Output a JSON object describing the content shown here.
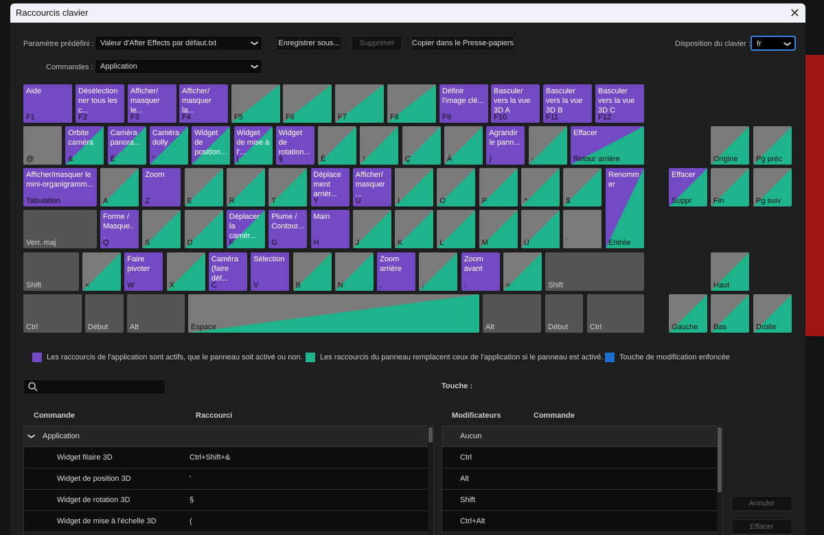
{
  "dialog": {
    "title": "Raccourcis clavier"
  },
  "preset": {
    "label": "Paramètre prédéfini :",
    "value": "Valeur d'After Effects par défaut.txt"
  },
  "commands": {
    "label": "Commandes :",
    "value": "Application"
  },
  "buttons": {
    "save_as": "Enregistrer sous...",
    "delete": "Supprimer",
    "copy": "Copier dans le Presse-papiers",
    "cancel": "Annuler",
    "clear": "Effacer"
  },
  "layout": {
    "label": "Disposition du clavier :",
    "value": "fr"
  },
  "colors": {
    "app": "#7349c4",
    "panel": "#1fb38c",
    "modifier": "#1a6fd0",
    "empty": "#7a7a7a",
    "mod_key": "#555555"
  },
  "keys": [
    {
      "k": "F1",
      "c": "Aide",
      "t": "app"
    },
    {
      "k": "F2",
      "c": "Désélectionner tous les c...",
      "t": "app"
    },
    {
      "k": "F3",
      "c": "Afficher/ masquer le...",
      "t": "app"
    },
    {
      "k": "F4",
      "c": "Afficher/ masquer la...",
      "t": "app"
    },
    {
      "k": "F5",
      "c": "",
      "t": "panel"
    },
    {
      "k": "F6",
      "c": "",
      "t": "panel"
    },
    {
      "k": "F7",
      "c": "",
      "t": "panel"
    },
    {
      "k": "F8",
      "c": "",
      "t": "panel"
    },
    {
      "k": "F9",
      "c": "Définir l'image clé...",
      "t": "app"
    },
    {
      "k": "F10",
      "c": "Basculer vers la vue 3D A",
      "t": "app"
    },
    {
      "k": "F11",
      "c": "Basculer vers la vue 3D B",
      "t": "app"
    },
    {
      "k": "F12",
      "c": "Basculer vers la vue 3D C",
      "t": "app"
    },
    {
      "k": "@",
      "c": "",
      "t": "none"
    },
    {
      "k": "&",
      "c": "Orbite caméra",
      "t": "both"
    },
    {
      "k": "É",
      "c": "Caméra panora...",
      "t": "both"
    },
    {
      "k": "\"",
      "c": "Caméra dolly",
      "t": "both"
    },
    {
      "k": "'",
      "c": "Widget de position...",
      "t": "both"
    },
    {
      "k": "(",
      "c": "Widget de mise à l'...",
      "t": "both"
    },
    {
      "k": "§",
      "c": "Widget de rotation...",
      "t": "app"
    },
    {
      "k": "È",
      "c": "",
      "t": "panel"
    },
    {
      "k": "!",
      "c": "",
      "t": "panel"
    },
    {
      "k": "Ç",
      "c": "",
      "t": "panel"
    },
    {
      "k": "À",
      "c": "",
      "t": "panel"
    },
    {
      "k": ")",
      "c": "Agrandir le pann...",
      "t": "app"
    },
    {
      "k": "-",
      "c": "",
      "t": "panel"
    },
    {
      "k": "Retour arrière",
      "c": "Effacer",
      "t": "both"
    },
    {
      "k": "Origine",
      "c": "",
      "t": "panel"
    },
    {
      "k": "Pg préc",
      "c": "",
      "t": "panel"
    },
    {
      "k": "Tabulation",
      "c": "Afficher/masquer le mini-organigramm...",
      "t": "app"
    },
    {
      "k": "A",
      "c": "",
      "t": "panel"
    },
    {
      "k": "Z",
      "c": "Zoom",
      "t": "app"
    },
    {
      "k": "E",
      "c": "",
      "t": "panel"
    },
    {
      "k": "R",
      "c": "",
      "t": "panel"
    },
    {
      "k": "T",
      "c": "",
      "t": "panel"
    },
    {
      "k": "Y",
      "c": "Déplacement arrièr...",
      "t": "app"
    },
    {
      "k": "U",
      "c": "Afficher/ masquer ...",
      "t": "app"
    },
    {
      "k": "I",
      "c": "",
      "t": "panel"
    },
    {
      "k": "O",
      "c": "",
      "t": "panel"
    },
    {
      "k": "P",
      "c": "",
      "t": "panel"
    },
    {
      "k": "^",
      "c": "",
      "t": "panel"
    },
    {
      "k": "$",
      "c": "",
      "t": "panel"
    },
    {
      "k": "Entrée",
      "c": "Renommer",
      "t": "both"
    },
    {
      "k": "Suppr",
      "c": "Effacer",
      "t": "both"
    },
    {
      "k": "Fin",
      "c": "",
      "t": "panel"
    },
    {
      "k": "Pg suiv",
      "c": "",
      "t": "panel"
    },
    {
      "k": "Verr. maj",
      "c": "",
      "t": "mod"
    },
    {
      "k": "Q",
      "c": "Forme / Masque...",
      "t": "app"
    },
    {
      "k": "S",
      "c": "",
      "t": "panel"
    },
    {
      "k": "D",
      "c": "",
      "t": "panel"
    },
    {
      "k": "F",
      "c": "Déplacer la camér...",
      "t": "both"
    },
    {
      "k": "G",
      "c": "Plume / Contour...",
      "t": "app"
    },
    {
      "k": "H",
      "c": "Main",
      "t": "app"
    },
    {
      "k": "J",
      "c": "",
      "t": "panel"
    },
    {
      "k": "K",
      "c": "",
      "t": "panel"
    },
    {
      "k": "L",
      "c": "",
      "t": "panel"
    },
    {
      "k": "M",
      "c": "",
      "t": "panel"
    },
    {
      "k": "Ù",
      "c": "",
      "t": "panel"
    },
    {
      "k": "`",
      "c": "",
      "t": "none"
    },
    {
      "k": "Shift",
      "c": "",
      "t": "mod"
    },
    {
      "k": "<",
      "c": "",
      "t": "panel"
    },
    {
      "k": "W",
      "c": "Faire pivoter",
      "t": "app"
    },
    {
      "k": "X",
      "c": "",
      "t": "panel"
    },
    {
      "k": "C",
      "c": "Caméra (faire déf...",
      "t": "app"
    },
    {
      "k": "V",
      "c": "Sélection",
      "t": "app"
    },
    {
      "k": "B",
      "c": "",
      "t": "panel"
    },
    {
      "k": "N",
      "c": "",
      "t": "panel"
    },
    {
      "k": ",",
      "c": "Zoom arrière",
      "t": "app"
    },
    {
      "k": ";",
      "c": "",
      "t": "panel"
    },
    {
      "k": ":",
      "c": "Zoom avant",
      "t": "app"
    },
    {
      "k": "=",
      "c": "",
      "t": "panel"
    },
    {
      "k": "Shift",
      "c": "",
      "t": "mod"
    },
    {
      "k": "Haut",
      "c": "",
      "t": "panel"
    },
    {
      "k": "Ctrl",
      "c": "",
      "t": "mod"
    },
    {
      "k": "Début",
      "c": "",
      "t": "mod"
    },
    {
      "k": "Alt",
      "c": "",
      "t": "mod"
    },
    {
      "k": "Espace",
      "c": "",
      "t": "panel"
    },
    {
      "k": "Alt",
      "c": "",
      "t": "mod"
    },
    {
      "k": "Début",
      "c": "",
      "t": "mod"
    },
    {
      "k": "Ctrl",
      "c": "",
      "t": "mod"
    },
    {
      "k": "Gauche",
      "c": "",
      "t": "panel"
    },
    {
      "k": "Bas",
      "c": "",
      "t": "panel"
    },
    {
      "k": "Droite",
      "c": "",
      "t": "panel"
    }
  ],
  "legend": {
    "app": "Les raccourcis de l'application sont actifs, que le panneau soit activé ou non.",
    "panel": "Les raccourcis du panneau remplacent ceux de l'application si le panneau est activé.",
    "modifier": "Touche de modification enfoncée"
  },
  "search": {
    "placeholder": "",
    "icon": "search-icon"
  },
  "left_table": {
    "headers": [
      "Commande",
      "Raccourci"
    ],
    "group": "Application",
    "rows": [
      [
        "Widget filaire 3D",
        "Ctrl+Shift+&"
      ],
      [
        "Widget de position 3D",
        "'"
      ],
      [
        "Widget de rotation 3D",
        "§"
      ],
      [
        "Widget de mise à l'échelle 3D",
        "("
      ]
    ]
  },
  "key_label": "Touche :",
  "right_table": {
    "headers": [
      "Modificateurs",
      "Commande"
    ],
    "rows": [
      "Aucun",
      "Ctrl",
      "Alt",
      "Shift",
      "Ctrl+Alt"
    ]
  }
}
